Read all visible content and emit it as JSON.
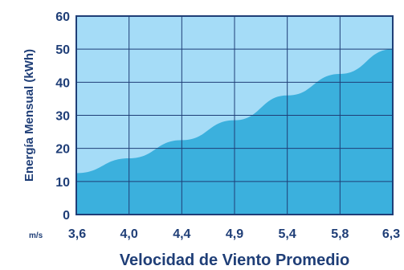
{
  "chart_data": {
    "type": "area",
    "xlabel": "Velocidad de Viento Promedio",
    "ylabel": "Energía Mensual (kWh)",
    "x_unit": "m/s",
    "x": [
      "3,6",
      "4,0",
      "4,4",
      "4,9",
      "5,4",
      "5,8",
      "6,3"
    ],
    "y_ticks": [
      "0",
      "10",
      "20",
      "30",
      "40",
      "50",
      "60"
    ],
    "ylim": [
      0,
      60
    ],
    "grid": true,
    "series": [
      {
        "values": [
          12.5,
          17,
          22.5,
          28.5,
          36,
          42.5,
          50
        ]
      }
    ],
    "colors": {
      "area_fill": "#3bb0dd",
      "background_fill": "#a5dcf7",
      "grid": "#1f3e77",
      "text": "#1f3e77"
    }
  }
}
